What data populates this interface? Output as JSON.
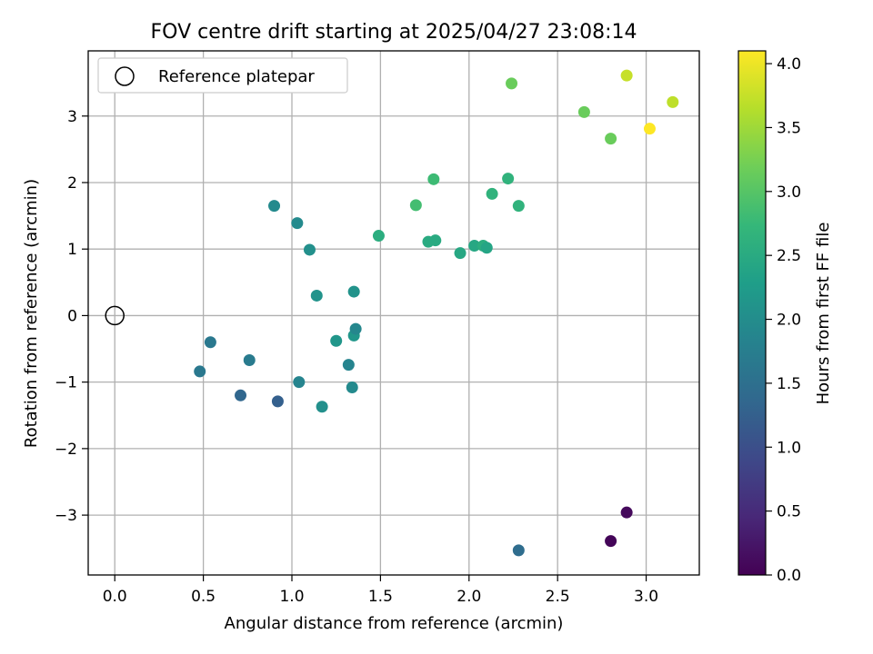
{
  "chart_data": {
    "type": "scatter",
    "title": "FOV centre drift starting at 2025/04/27 23:08:14",
    "xlabel": "Angular distance from reference (arcmin)",
    "ylabel": "Rotation from reference (arcmin)",
    "xlim": [
      -0.15,
      3.3
    ],
    "ylim": [
      -3.9,
      3.98
    ],
    "xticks": [
      0.0,
      0.5,
      1.0,
      1.5,
      2.0,
      2.5,
      3.0
    ],
    "xtick_labels": [
      "0.0",
      "0.5",
      "1.0",
      "1.5",
      "2.0",
      "2.5",
      "3.0"
    ],
    "yticks": [
      -3,
      -2,
      -1,
      0,
      1,
      2,
      3
    ],
    "ytick_labels": [
      "−3",
      "−2",
      "−1",
      "0",
      "1",
      "2",
      "3"
    ],
    "grid": true,
    "legend": {
      "position": "top-left",
      "entries": [
        "Reference platepar"
      ]
    },
    "reference_point": {
      "x": 0.0,
      "y": 0.0
    },
    "colorbar": {
      "label": "Hours from first FF file",
      "range": [
        0.0,
        4.1
      ],
      "ticks": [
        0.0,
        0.5,
        1.0,
        1.5,
        2.0,
        2.5,
        3.0,
        3.5,
        4.0
      ],
      "tick_labels": [
        "0.0",
        "0.5",
        "1.0",
        "1.5",
        "2.0",
        "2.5",
        "3.0",
        "3.5",
        "4.0"
      ],
      "colormap": "viridis"
    },
    "points": [
      {
        "x": 2.8,
        "y": -3.39,
        "c": 0.05
      },
      {
        "x": 2.89,
        "y": -2.96,
        "c": 0.1
      },
      {
        "x": 2.28,
        "y": -3.53,
        "c": 1.45
      },
      {
        "x": 0.92,
        "y": -1.29,
        "c": 1.25
      },
      {
        "x": 0.71,
        "y": -1.2,
        "c": 1.35
      },
      {
        "x": 0.48,
        "y": -0.84,
        "c": 1.65
      },
      {
        "x": 0.54,
        "y": -0.4,
        "c": 1.65
      },
      {
        "x": 0.76,
        "y": -0.67,
        "c": 1.7
      },
      {
        "x": 1.04,
        "y": -1.0,
        "c": 1.85
      },
      {
        "x": 1.17,
        "y": -1.37,
        "c": 2.05
      },
      {
        "x": 1.34,
        "y": -1.08,
        "c": 1.95
      },
      {
        "x": 1.32,
        "y": -0.74,
        "c": 1.85
      },
      {
        "x": 1.25,
        "y": -0.38,
        "c": 2.15
      },
      {
        "x": 1.35,
        "y": -0.3,
        "c": 2.15
      },
      {
        "x": 1.36,
        "y": -0.2,
        "c": 1.9
      },
      {
        "x": 1.35,
        "y": 0.36,
        "c": 2.1
      },
      {
        "x": 1.14,
        "y": 0.3,
        "c": 2.1
      },
      {
        "x": 1.1,
        "y": 0.99,
        "c": 2.05
      },
      {
        "x": 1.03,
        "y": 1.39,
        "c": 1.95
      },
      {
        "x": 0.9,
        "y": 1.65,
        "c": 1.95
      },
      {
        "x": 1.49,
        "y": 1.2,
        "c": 2.55
      },
      {
        "x": 1.7,
        "y": 1.66,
        "c": 2.85
      },
      {
        "x": 1.77,
        "y": 1.11,
        "c": 2.5
      },
      {
        "x": 1.81,
        "y": 1.13,
        "c": 2.5
      },
      {
        "x": 1.8,
        "y": 2.05,
        "c": 2.8
      },
      {
        "x": 1.95,
        "y": 0.94,
        "c": 2.45
      },
      {
        "x": 2.03,
        "y": 1.05,
        "c": 2.45
      },
      {
        "x": 2.08,
        "y": 1.05,
        "c": 2.55
      },
      {
        "x": 2.1,
        "y": 1.02,
        "c": 2.4
      },
      {
        "x": 2.13,
        "y": 1.83,
        "c": 2.65
      },
      {
        "x": 2.22,
        "y": 2.06,
        "c": 2.65
      },
      {
        "x": 2.28,
        "y": 1.65,
        "c": 2.65
      },
      {
        "x": 2.24,
        "y": 3.49,
        "c": 3.15
      },
      {
        "x": 2.65,
        "y": 3.06,
        "c": 3.15
      },
      {
        "x": 2.8,
        "y": 2.66,
        "c": 3.15
      },
      {
        "x": 2.89,
        "y": 3.61,
        "c": 3.75
      },
      {
        "x": 3.02,
        "y": 2.81,
        "c": 4.1
      },
      {
        "x": 3.15,
        "y": 3.21,
        "c": 3.7
      }
    ]
  }
}
